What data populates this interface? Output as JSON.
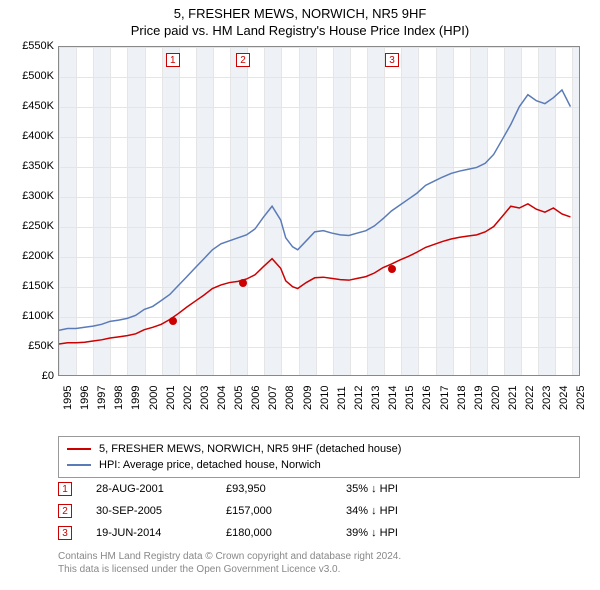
{
  "title": {
    "line1": "5, FRESHER MEWS, NORWICH, NR5 9HF",
    "line2": "Price paid vs. HM Land Registry's House Price Index (HPI)",
    "fontsize": 13
  },
  "chart": {
    "type": "line",
    "background_color": "#ffffff",
    "grid_color": "#e5e5e5",
    "band_color": "#eef2f7",
    "border_color": "#888888",
    "ylim": [
      0,
      550000
    ],
    "ytick_step": 50000,
    "y_labels": [
      "£0",
      "£50K",
      "£100K",
      "£150K",
      "£200K",
      "£250K",
      "£300K",
      "£350K",
      "£400K",
      "£450K",
      "£500K",
      "£550K"
    ],
    "x_years": [
      1995,
      1996,
      1997,
      1998,
      1999,
      2000,
      2001,
      2002,
      2003,
      2004,
      2005,
      2006,
      2007,
      2008,
      2009,
      2010,
      2011,
      2012,
      2013,
      2014,
      2015,
      2016,
      2017,
      2018,
      2019,
      2020,
      2021,
      2022,
      2023,
      2024,
      2025
    ],
    "xlim": [
      1995,
      2025.5
    ],
    "label_fontsize": 11,
    "series": {
      "hpi": {
        "color": "#5b7bb8",
        "width": 1.5,
        "points": [
          [
            1995,
            75000
          ],
          [
            1995.5,
            78000
          ],
          [
            1996,
            78000
          ],
          [
            1996.5,
            80000
          ],
          [
            1997,
            82000
          ],
          [
            1997.5,
            85000
          ],
          [
            1998,
            90000
          ],
          [
            1998.5,
            92000
          ],
          [
            1999,
            95000
          ],
          [
            1999.5,
            100000
          ],
          [
            2000,
            110000
          ],
          [
            2000.5,
            115000
          ],
          [
            2001,
            125000
          ],
          [
            2001.5,
            135000
          ],
          [
            2002,
            150000
          ],
          [
            2002.5,
            165000
          ],
          [
            2003,
            180000
          ],
          [
            2003.5,
            195000
          ],
          [
            2004,
            210000
          ],
          [
            2004.5,
            220000
          ],
          [
            2005,
            225000
          ],
          [
            2005.5,
            230000
          ],
          [
            2006,
            235000
          ],
          [
            2006.5,
            245000
          ],
          [
            2007,
            265000
          ],
          [
            2007.5,
            283000
          ],
          [
            2008,
            260000
          ],
          [
            2008.3,
            230000
          ],
          [
            2008.7,
            215000
          ],
          [
            2009,
            210000
          ],
          [
            2009.5,
            225000
          ],
          [
            2010,
            240000
          ],
          [
            2010.5,
            242000
          ],
          [
            2011,
            238000
          ],
          [
            2011.5,
            235000
          ],
          [
            2012,
            234000
          ],
          [
            2012.5,
            238000
          ],
          [
            2013,
            242000
          ],
          [
            2013.5,
            250000
          ],
          [
            2014,
            262000
          ],
          [
            2014.5,
            275000
          ],
          [
            2015,
            285000
          ],
          [
            2015.5,
            295000
          ],
          [
            2016,
            305000
          ],
          [
            2016.5,
            318000
          ],
          [
            2017,
            325000
          ],
          [
            2017.5,
            332000
          ],
          [
            2018,
            338000
          ],
          [
            2018.5,
            342000
          ],
          [
            2019,
            345000
          ],
          [
            2019.5,
            348000
          ],
          [
            2020,
            355000
          ],
          [
            2020.5,
            370000
          ],
          [
            2021,
            395000
          ],
          [
            2021.5,
            420000
          ],
          [
            2022,
            450000
          ],
          [
            2022.5,
            470000
          ],
          [
            2023,
            460000
          ],
          [
            2023.5,
            455000
          ],
          [
            2024,
            465000
          ],
          [
            2024.5,
            478000
          ],
          [
            2025,
            450000
          ]
        ]
      },
      "property": {
        "color": "#cc0000",
        "width": 1.5,
        "points": [
          [
            1995,
            52000
          ],
          [
            1995.5,
            54000
          ],
          [
            1996,
            54000
          ],
          [
            1996.5,
            55000
          ],
          [
            1997,
            57000
          ],
          [
            1997.5,
            59000
          ],
          [
            1998,
            62000
          ],
          [
            1998.5,
            64000
          ],
          [
            1999,
            66000
          ],
          [
            1999.5,
            69000
          ],
          [
            2000,
            76000
          ],
          [
            2000.5,
            80000
          ],
          [
            2001,
            85000
          ],
          [
            2001.5,
            93000
          ],
          [
            2002,
            103000
          ],
          [
            2002.5,
            114000
          ],
          [
            2003,
            124000
          ],
          [
            2003.5,
            134000
          ],
          [
            2004,
            145000
          ],
          [
            2004.5,
            151000
          ],
          [
            2005,
            155000
          ],
          [
            2005.5,
            157000
          ],
          [
            2006,
            161000
          ],
          [
            2006.5,
            168000
          ],
          [
            2007,
            182000
          ],
          [
            2007.5,
            195000
          ],
          [
            2008,
            179000
          ],
          [
            2008.3,
            158000
          ],
          [
            2008.7,
            148000
          ],
          [
            2009,
            145000
          ],
          [
            2009.5,
            155000
          ],
          [
            2010,
            163000
          ],
          [
            2010.5,
            164000
          ],
          [
            2011,
            162000
          ],
          [
            2011.5,
            160000
          ],
          [
            2012,
            159000
          ],
          [
            2012.5,
            162000
          ],
          [
            2013,
            165000
          ],
          [
            2013.5,
            171000
          ],
          [
            2014,
            180000
          ],
          [
            2014.5,
            186000
          ],
          [
            2015,
            193000
          ],
          [
            2015.5,
            199000
          ],
          [
            2016,
            206000
          ],
          [
            2016.5,
            214000
          ],
          [
            2017,
            219000
          ],
          [
            2017.5,
            224000
          ],
          [
            2018,
            228000
          ],
          [
            2018.5,
            231000
          ],
          [
            2019,
            233000
          ],
          [
            2019.5,
            235000
          ],
          [
            2020,
            240000
          ],
          [
            2020.5,
            249000
          ],
          [
            2021,
            266000
          ],
          [
            2021.5,
            283000
          ],
          [
            2022,
            280000
          ],
          [
            2022.5,
            287000
          ],
          [
            2023,
            278000
          ],
          [
            2023.5,
            273000
          ],
          [
            2024,
            280000
          ],
          [
            2024.5,
            270000
          ],
          [
            2025,
            265000
          ]
        ]
      }
    },
    "markers": [
      {
        "n": "1",
        "x": 2001.65,
        "y": 93950
      },
      {
        "n": "2",
        "x": 2005.75,
        "y": 157000
      },
      {
        "n": "3",
        "x": 2014.46,
        "y": 180000
      }
    ],
    "marker_color": "#cc0000",
    "marker_box_bg": "#ffffff"
  },
  "legend": {
    "rows": [
      {
        "color": "#cc0000",
        "label": "5, FRESHER MEWS, NORWICH, NR5 9HF (detached house)"
      },
      {
        "color": "#5b7bb8",
        "label": "HPI: Average price, detached house, Norwich"
      }
    ],
    "border_color": "#999999",
    "fontsize": 11
  },
  "sales": [
    {
      "n": "1",
      "date": "28-AUG-2001",
      "price": "£93,950",
      "delta": "35% ↓ HPI"
    },
    {
      "n": "2",
      "date": "30-SEP-2005",
      "price": "£157,000",
      "delta": "34% ↓ HPI"
    },
    {
      "n": "3",
      "date": "19-JUN-2014",
      "price": "£180,000",
      "delta": "39% ↓ HPI"
    }
  ],
  "footer": {
    "line1": "Contains HM Land Registry data © Crown copyright and database right 2024.",
    "line2": "This data is licensed under the Open Government Licence v3.0.",
    "color": "#888888",
    "fontsize": 10
  }
}
